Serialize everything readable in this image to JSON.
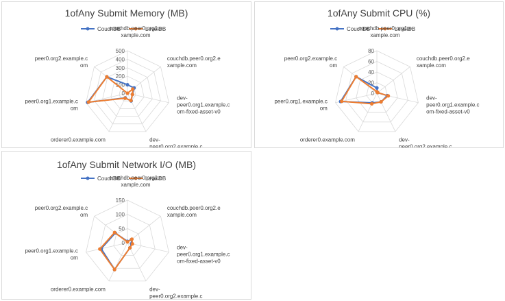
{
  "chart_data": [
    {
      "type": "radar",
      "title": "1ofAny Submit Memory (MB)",
      "categories": [
        "couchdb.peer0.org1.example.com",
        "couchdb.peer0.org2.example.com",
        "dev-peer0.org1.example.com-fixed-asset-v0",
        "dev-peer0.org2.example.com-fixed-asset-v0",
        "orderer0.example.com",
        "peer0.org1.example.com",
        "peer0.org2.example.com"
      ],
      "category_lines": [
        [
          "couchdb.peer0.org1.e",
          "xample.com"
        ],
        [
          "couchdb.peer0.org2.e",
          "xample.com"
        ],
        [
          "dev-",
          "peer0.org1.example.c",
          "om-fixed-asset-v0"
        ],
        [
          "dev-",
          "peer0.org2.example.c",
          "om-fixed-asset-v0"
        ],
        [
          "orderer0.example.com"
        ],
        [
          "peer0.org1.example.c",
          "om"
        ],
        [
          "peer0.org2.example.c",
          "om"
        ]
      ],
      "rmax": 500,
      "ticks": [
        "0",
        "100",
        "200",
        "300",
        "400",
        "500"
      ],
      "tick_values": [
        0,
        100,
        200,
        300,
        400,
        500
      ],
      "legend": "top",
      "series": [
        {
          "name": "CouchDB",
          "color": "#4472c4",
          "values": [
            100,
            100,
            60,
            100,
            60,
            480,
            310
          ]
        },
        {
          "name": "LevelDB",
          "color": "#ed7d31",
          "values": [
            0,
            80,
            60,
            95,
            65,
            470,
            310
          ]
        }
      ]
    },
    {
      "type": "radar",
      "title": "1ofAny Submit CPU (%)",
      "categories": [
        "couchdb.peer0.org1.example.com",
        "couchdb.peer0.org2.example.com",
        "dev-peer0.org1.example.com-fixed-asset-v0",
        "dev-peer0.org2.example.com-fixed-asset-v0",
        "orderer0.example.com",
        "peer0.org1.example.com",
        "peer0.org2.example.com"
      ],
      "category_lines": [
        [
          "couchdb.peer0.org1.e",
          "xample.com"
        ],
        [
          "couchdb.peer0.org2.e",
          "xample.com"
        ],
        [
          "dev-",
          "peer0.org1.example.c",
          "om-fixed-asset-v0"
        ],
        [
          "dev-",
          "peer0.org2.example.c",
          "om-fixed-asset-v0"
        ],
        [
          "orderer0.example.com"
        ],
        [
          "peer0.org1.example.c",
          "om"
        ],
        [
          "peer0.org2.example.c",
          "om"
        ]
      ],
      "rmax": 80,
      "ticks": [
        "0",
        "20",
        "40",
        "60",
        "80"
      ],
      "tick_values": [
        0,
        20,
        40,
        60,
        80
      ],
      "legend": "top",
      "series": [
        {
          "name": "CouchDB",
          "color": "#4472c4",
          "values": [
            10,
            2,
            20,
            18,
            20,
            70,
            50
          ]
        },
        {
          "name": "LevelDB",
          "color": "#ed7d31",
          "values": [
            3,
            2,
            22,
            18,
            22,
            68,
            50
          ]
        }
      ]
    },
    {
      "type": "radar",
      "title": "1ofAny Submit Network I/O (MB)",
      "categories": [
        "couchdb.peer0.org1.example.com",
        "couchdb.peer0.org2.example.com",
        "dev-peer0.org1.example.com-fixed-asset-v0",
        "dev-peer0.org2.example.com-fixed-asset-v0",
        "orderer0.example.com",
        "peer0.org1.example.com",
        "peer0.org2.example.com"
      ],
      "category_lines": [
        [
          "couchdb.peer0.org1.e",
          "xample.com"
        ],
        [
          "couchdb.peer0.org2.e",
          "xample.com"
        ],
        [
          "dev-",
          "peer0.org1.example.c",
          "om-fixed-asset-v0"
        ],
        [
          "dev-",
          "peer0.org2.example.c",
          "om-fixed-asset-v0"
        ],
        [
          "orderer0.example.com"
        ],
        [
          "peer0.org1.example.c",
          "om"
        ],
        [
          "peer0.org2.example.c",
          "om"
        ]
      ],
      "rmax": 150,
      "ticks": [
        "0",
        "50",
        "100",
        "150"
      ],
      "tick_values": [
        0,
        50,
        100,
        150
      ],
      "legend": "top",
      "series": [
        {
          "name": "CouchDB",
          "color": "#4472c4",
          "values": [
            5,
            18,
            15,
            20,
            105,
            95,
            55
          ]
        },
        {
          "name": "LevelDB",
          "color": "#ed7d31",
          "values": [
            3,
            20,
            18,
            20,
            105,
            100,
            58
          ]
        }
      ]
    }
  ]
}
